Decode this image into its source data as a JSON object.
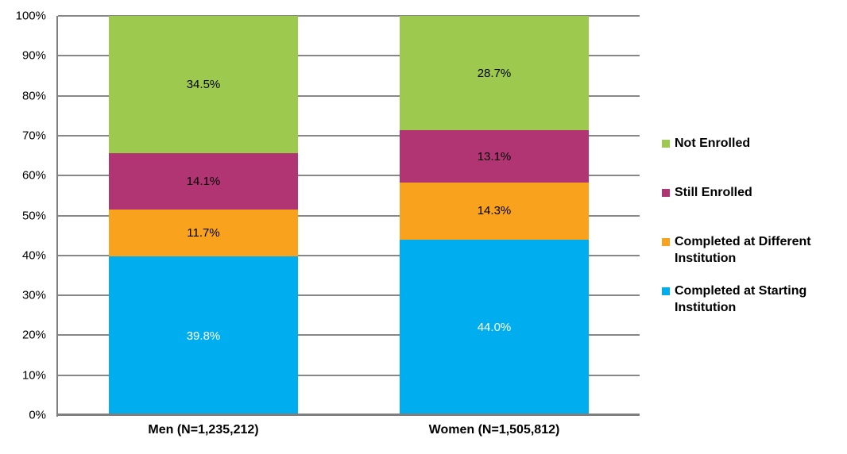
{
  "chart_data": {
    "type": "bar",
    "subtype": "stacked-100",
    "title": "",
    "xlabel": "",
    "ylabel": "",
    "categories": [
      "Men (N=1,235,212)",
      "Women (N=1,505,812)"
    ],
    "series": [
      {
        "name": "Completed at Starting Institution",
        "color": "#00AEEF",
        "values": [
          39.8,
          44.0
        ],
        "labels": [
          "39.8%",
          "44.0%"
        ],
        "label_color": "#FFFFFF"
      },
      {
        "name": "Completed at Different Institution",
        "color": "#F9A21D",
        "values": [
          11.7,
          14.3
        ],
        "labels": [
          "11.7%",
          "14.3%"
        ],
        "label_color": "#000000"
      },
      {
        "name": "Still Enrolled",
        "color": "#B23573",
        "values": [
          14.1,
          13.1
        ],
        "labels": [
          "14.1%",
          "13.1%"
        ],
        "label_color": "#000000"
      },
      {
        "name": "Not Enrolled",
        "color": "#9DC94E",
        "values": [
          34.5,
          28.7
        ],
        "labels": [
          "34.5%",
          "28.7%"
        ],
        "label_color": "#000000"
      }
    ],
    "y_axis": {
      "ticks": [
        "0%",
        "10%",
        "20%",
        "30%",
        "40%",
        "50%",
        "60%",
        "70%",
        "80%",
        "90%",
        "100%"
      ],
      "ylim": [
        0,
        100
      ],
      "grid": true,
      "grid_color": "#878787",
      "axis_color": "#7F7F7F"
    },
    "legend": {
      "position": "right",
      "order": [
        "Not Enrolled",
        "Still Enrolled",
        "Completed at Different Institution",
        "Completed at Starting Institution"
      ]
    },
    "background_color": "#FFFFFF"
  }
}
